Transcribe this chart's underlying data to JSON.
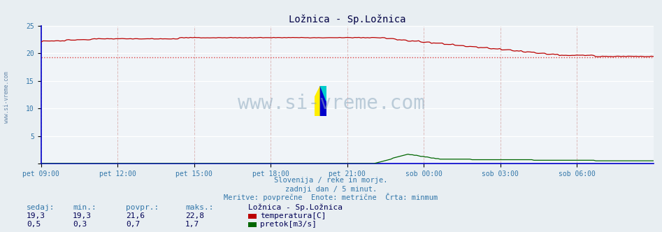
{
  "title": "Ložnica - Sp.Ložnica",
  "fig_bg_color": "#e8eef2",
  "plot_bg_color": "#f0f4f8",
  "grid_h_color": "#ffffff",
  "grid_v_color": "#ddbbbb",
  "temp_color": "#bb0000",
  "flow_color": "#006600",
  "avg_line_color": "#dd4444",
  "axis_color": "#0000cc",
  "tick_color": "#3377aa",
  "title_color": "#000044",
  "text_color": "#3377aa",
  "label_color": "#000055",
  "ylim": [
    0,
    25
  ],
  "yticks": [
    0,
    5,
    10,
    15,
    20,
    25
  ],
  "xtick_labels": [
    "pet 09:00",
    "pet 12:00",
    "pet 15:00",
    "pet 18:00",
    "pet 21:00",
    "sob 00:00",
    "sob 03:00",
    "sob 06:00"
  ],
  "avg_line_y": 19.3,
  "subtitle1": "Slovenija / reke in morje.",
  "subtitle2": "zadnji dan / 5 minut.",
  "subtitle3": "Meritve: povprečne  Enote: metrične  Črta: minmum",
  "legend_title": "Ložnica - Sp.Ložnica",
  "legend_temp": "temperatura[C]",
  "legend_flow": "pretok[m3/s]",
  "col_headers": [
    "sedaj:",
    "min.:",
    "povpr.:",
    "maks.:"
  ],
  "temp_row": [
    "19,3",
    "19,3",
    "21,6",
    "22,8"
  ],
  "flow_row": [
    "0,5",
    "0,3",
    "0,7",
    "1,7"
  ],
  "watermark": "www.si-vreme.com",
  "sidewatermark": "www.si-vreme.com"
}
